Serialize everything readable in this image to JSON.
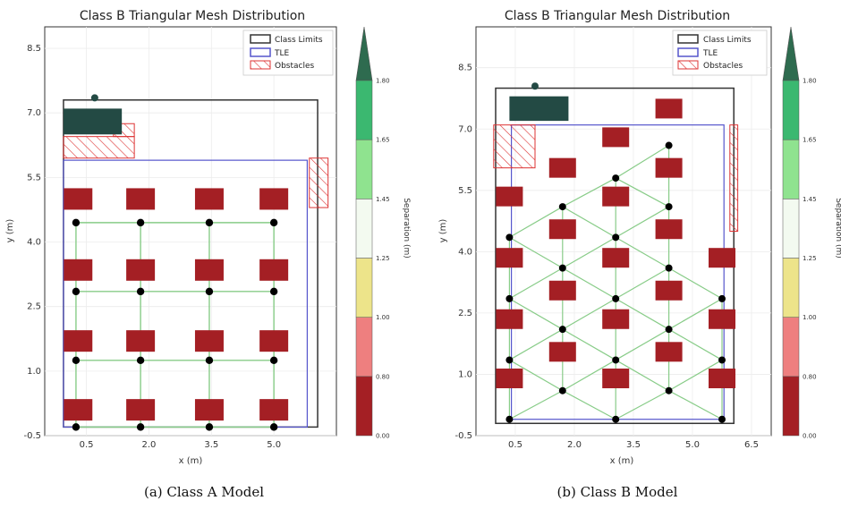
{
  "chart_data": [
    {
      "type": "scatter",
      "title": "Class B Triangular Mesh Distribution",
      "xlabel": "x (m)",
      "ylabel": "y (m)",
      "xticks": [
        "0.5",
        "2.0",
        "3.5",
        "5.0"
      ],
      "yticks": [
        "-0.5",
        "1.0",
        "2.5",
        "4.0",
        "5.5",
        "7.0",
        "8.5"
      ],
      "xlim": [
        -0.5,
        6.5
      ],
      "ylim": [
        -0.5,
        9.0
      ],
      "legend_position": "top-right",
      "legend": [
        "Class Limits",
        "TLE",
        "Obstacles"
      ],
      "colors": {
        "class_limits": "#333333",
        "tle": "#5555cc",
        "obstacles": "#dd3333",
        "rack": "#a41f24",
        "node": "#000000",
        "edge": "#88cc88",
        "equipment": "#234a44"
      },
      "class_limits": {
        "x": [
          -0.05,
          6.05
        ],
        "y": [
          -0.3,
          7.3
        ]
      },
      "tle": {
        "x": [
          -0.05,
          5.8
        ],
        "y": [
          -0.3,
          5.9
        ]
      },
      "obstacles": [
        {
          "x": [
            -0.05,
            1.65
          ],
          "y": [
            5.95,
            6.45
          ]
        },
        {
          "x": [
            1.15,
            1.65
          ],
          "y": [
            6.45,
            6.75
          ]
        },
        {
          "x": [
            5.85,
            6.3
          ],
          "y": [
            4.8,
            5.95
          ]
        }
      ],
      "equipment": {
        "x": [
          -0.05,
          1.35
        ],
        "y": [
          6.5,
          7.1
        ]
      },
      "equipment_marker": {
        "x": 0.7,
        "y": 7.35
      },
      "racks": {
        "x": [
          0.3,
          1.8,
          3.45,
          5.0
        ],
        "y": [
          0.1,
          1.7,
          3.35,
          5.0
        ]
      },
      "nodes": {
        "x": [
          0.25,
          1.8,
          3.45,
          5.0
        ],
        "y": [
          -0.3,
          1.25,
          2.85,
          4.45
        ]
      }
    },
    {
      "type": "scatter",
      "title": "Class B Triangular Mesh Distribution",
      "xlabel": "x (m)",
      "ylabel": "y (m)",
      "xticks": [
        "0.5",
        "2.0",
        "3.5",
        "5.0",
        "6.5"
      ],
      "yticks": [
        "-0.5",
        "1.0",
        "2.5",
        "4.0",
        "5.5",
        "7.0",
        "8.5"
      ],
      "xlim": [
        -0.5,
        7.0
      ],
      "ylim": [
        -0.5,
        9.5
      ],
      "legend_position": "top-right",
      "legend": [
        "Class Limits",
        "TLE",
        "Obstacles"
      ],
      "class_limits": {
        "x": [
          0.0,
          6.05
        ],
        "y": [
          -0.2,
          8.0
        ]
      },
      "tle": {
        "x": [
          0.4,
          5.8
        ],
        "y": [
          -0.1,
          7.1
        ]
      },
      "obstacles": [
        {
          "x": [
            -0.05,
            1.0
          ],
          "y": [
            6.05,
            7.1
          ]
        },
        {
          "x": [
            5.95,
            6.15
          ],
          "y": [
            4.5,
            7.1
          ]
        }
      ],
      "equipment": {
        "x": [
          0.35,
          1.85
        ],
        "y": [
          7.2,
          7.8
        ]
      },
      "equipment_marker": {
        "x": 1.0,
        "y": 8.05
      },
      "racks": [
        [
          0.35,
          0.9
        ],
        [
          0.35,
          2.35
        ],
        [
          0.35,
          3.85
        ],
        [
          0.35,
          5.35
        ],
        [
          1.7,
          1.55
        ],
        [
          1.7,
          3.05
        ],
        [
          1.7,
          4.55
        ],
        [
          1.7,
          6.05
        ],
        [
          3.05,
          0.9
        ],
        [
          3.05,
          2.35
        ],
        [
          3.05,
          3.85
        ],
        [
          3.05,
          5.35
        ],
        [
          3.05,
          6.8
        ],
        [
          4.4,
          1.55
        ],
        [
          4.4,
          3.05
        ],
        [
          4.4,
          4.55
        ],
        [
          4.4,
          6.05
        ],
        [
          4.4,
          7.5
        ],
        [
          5.75,
          0.9
        ],
        [
          5.75,
          2.35
        ],
        [
          5.75,
          3.85
        ]
      ],
      "nodes": [
        [
          0.35,
          -0.1
        ],
        [
          0.35,
          1.35
        ],
        [
          0.35,
          2.85
        ],
        [
          0.35,
          4.35
        ],
        [
          1.7,
          0.6
        ],
        [
          1.7,
          2.1
        ],
        [
          1.7,
          3.6
        ],
        [
          1.7,
          5.1
        ],
        [
          3.05,
          -0.1
        ],
        [
          3.05,
          1.35
        ],
        [
          3.05,
          2.85
        ],
        [
          3.05,
          4.35
        ],
        [
          3.05,
          5.8
        ],
        [
          4.4,
          0.6
        ],
        [
          4.4,
          2.1
        ],
        [
          4.4,
          3.6
        ],
        [
          4.4,
          5.1
        ],
        [
          4.4,
          6.6
        ],
        [
          5.75,
          -0.1
        ],
        [
          5.75,
          1.35
        ],
        [
          5.75,
          2.85
        ]
      ]
    }
  ],
  "colorbar": {
    "label": "Separation (m)",
    "ticks": [
      "0.00",
      "0.80",
      "1.00",
      "1.25",
      "1.45",
      "1.65",
      "1.80"
    ],
    "colors": [
      "#a41f24",
      "#ee7f7f",
      "#ede48a",
      "#f3faf0",
      "#8fe38f",
      "#3bb870",
      "#2e8b57"
    ],
    "tip_color": "#2e6b4f"
  },
  "captions": [
    "(a) Class A Model",
    "(b) Class B Model"
  ]
}
